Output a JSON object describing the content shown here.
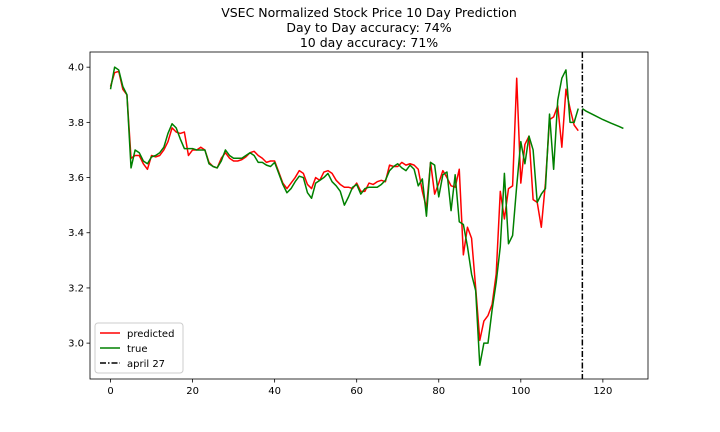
{
  "chart_data": {
    "type": "line",
    "title": [
      "VSEC Normalized Stock Price 10 Day Prediction",
      "Day to Day accuracy: 74%",
      "10 day accuracy: 71%"
    ],
    "xlabel": "",
    "ylabel": "",
    "xlim": [
      -5,
      131
    ],
    "ylim": [
      2.87,
      4.055
    ],
    "xticks": [
      0,
      20,
      40,
      60,
      80,
      100,
      120
    ],
    "yticks": [
      3.0,
      3.2,
      3.4,
      3.6,
      3.8,
      4.0
    ],
    "xtick_labels": [
      "0",
      "20",
      "40",
      "60",
      "80",
      "100",
      "120"
    ],
    "ytick_labels": [
      "3.0",
      "3.2",
      "3.4",
      "3.6",
      "3.8",
      "4.0"
    ],
    "grid": false,
    "legend_position": "lower-left",
    "legend": [
      "predicted",
      "true",
      "april 27"
    ],
    "series": [
      {
        "name": "predicted",
        "color": "#ff0000",
        "x_start": 0,
        "values": [
          3.93,
          3.98,
          3.985,
          3.92,
          3.9,
          3.67,
          3.68,
          3.68,
          3.65,
          3.63,
          3.68,
          3.675,
          3.68,
          3.7,
          3.73,
          3.78,
          3.765,
          3.76,
          3.765,
          3.68,
          3.7,
          3.7,
          3.71,
          3.7,
          3.655,
          3.64,
          3.635,
          3.67,
          3.69,
          3.67,
          3.66,
          3.66,
          3.665,
          3.675,
          3.69,
          3.695,
          3.68,
          3.67,
          3.655,
          3.66,
          3.66,
          3.62,
          3.58,
          3.56,
          3.58,
          3.6,
          3.625,
          3.615,
          3.575,
          3.56,
          3.6,
          3.59,
          3.62,
          3.625,
          3.615,
          3.59,
          3.575,
          3.565,
          3.565,
          3.56,
          3.58,
          3.55,
          3.55,
          3.58,
          3.575,
          3.585,
          3.59,
          3.585,
          3.645,
          3.64,
          3.64,
          3.655,
          3.645,
          3.65,
          3.645,
          3.63,
          3.55,
          3.49,
          3.655,
          3.54,
          3.58,
          3.625,
          3.6,
          3.57,
          3.565,
          3.63,
          3.32,
          3.42,
          3.38,
          3.2,
          3.01,
          3.08,
          3.1,
          3.14,
          3.25,
          3.55,
          3.45,
          3.56,
          3.57,
          3.96,
          3.58,
          3.72,
          3.75,
          3.52,
          3.51,
          3.42,
          3.58,
          3.81,
          3.82,
          3.86,
          3.71,
          3.92,
          3.85,
          3.79,
          3.77
        ]
      },
      {
        "name": "true",
        "color": "#008000",
        "x_start": 0,
        "values": [
          3.92,
          4.0,
          3.99,
          3.93,
          3.9,
          3.635,
          3.7,
          3.69,
          3.66,
          3.65,
          3.675,
          3.68,
          3.69,
          3.71,
          3.76,
          3.795,
          3.78,
          3.74,
          3.705,
          3.705,
          3.705,
          3.7,
          3.7,
          3.7,
          3.65,
          3.64,
          3.635,
          3.66,
          3.7,
          3.68,
          3.67,
          3.67,
          3.67,
          3.68,
          3.69,
          3.68,
          3.655,
          3.655,
          3.645,
          3.64,
          3.655,
          3.615,
          3.575,
          3.545,
          3.56,
          3.585,
          3.605,
          3.6,
          3.545,
          3.525,
          3.58,
          3.59,
          3.6,
          3.615,
          3.585,
          3.57,
          3.55,
          3.5,
          3.53,
          3.565,
          3.575,
          3.54,
          3.56,
          3.565,
          3.565,
          3.565,
          3.575,
          3.59,
          3.625,
          3.64,
          3.65,
          3.635,
          3.625,
          3.645,
          3.63,
          3.57,
          3.595,
          3.46,
          3.655,
          3.645,
          3.53,
          3.61,
          3.62,
          3.48,
          3.61,
          3.44,
          3.43,
          3.35,
          3.25,
          3.19,
          2.92,
          3.0,
          3.0,
          3.12,
          3.22,
          3.35,
          3.615,
          3.36,
          3.39,
          3.57,
          3.73,
          3.65,
          3.75,
          3.7,
          3.51,
          3.54,
          3.56,
          3.83,
          3.63,
          3.88,
          3.96,
          3.99,
          3.8,
          3.8,
          3.85
        ]
      },
      {
        "name": "",
        "color": "#008000",
        "x": [
          115,
          116,
          118,
          120,
          122,
          124,
          125
        ],
        "values": [
          3.85,
          3.84,
          3.825,
          3.81,
          3.797,
          3.785,
          3.778
        ]
      }
    ],
    "vline": {
      "name": "april 27",
      "x": 115,
      "color": "#000000",
      "style": "dashdot"
    }
  }
}
